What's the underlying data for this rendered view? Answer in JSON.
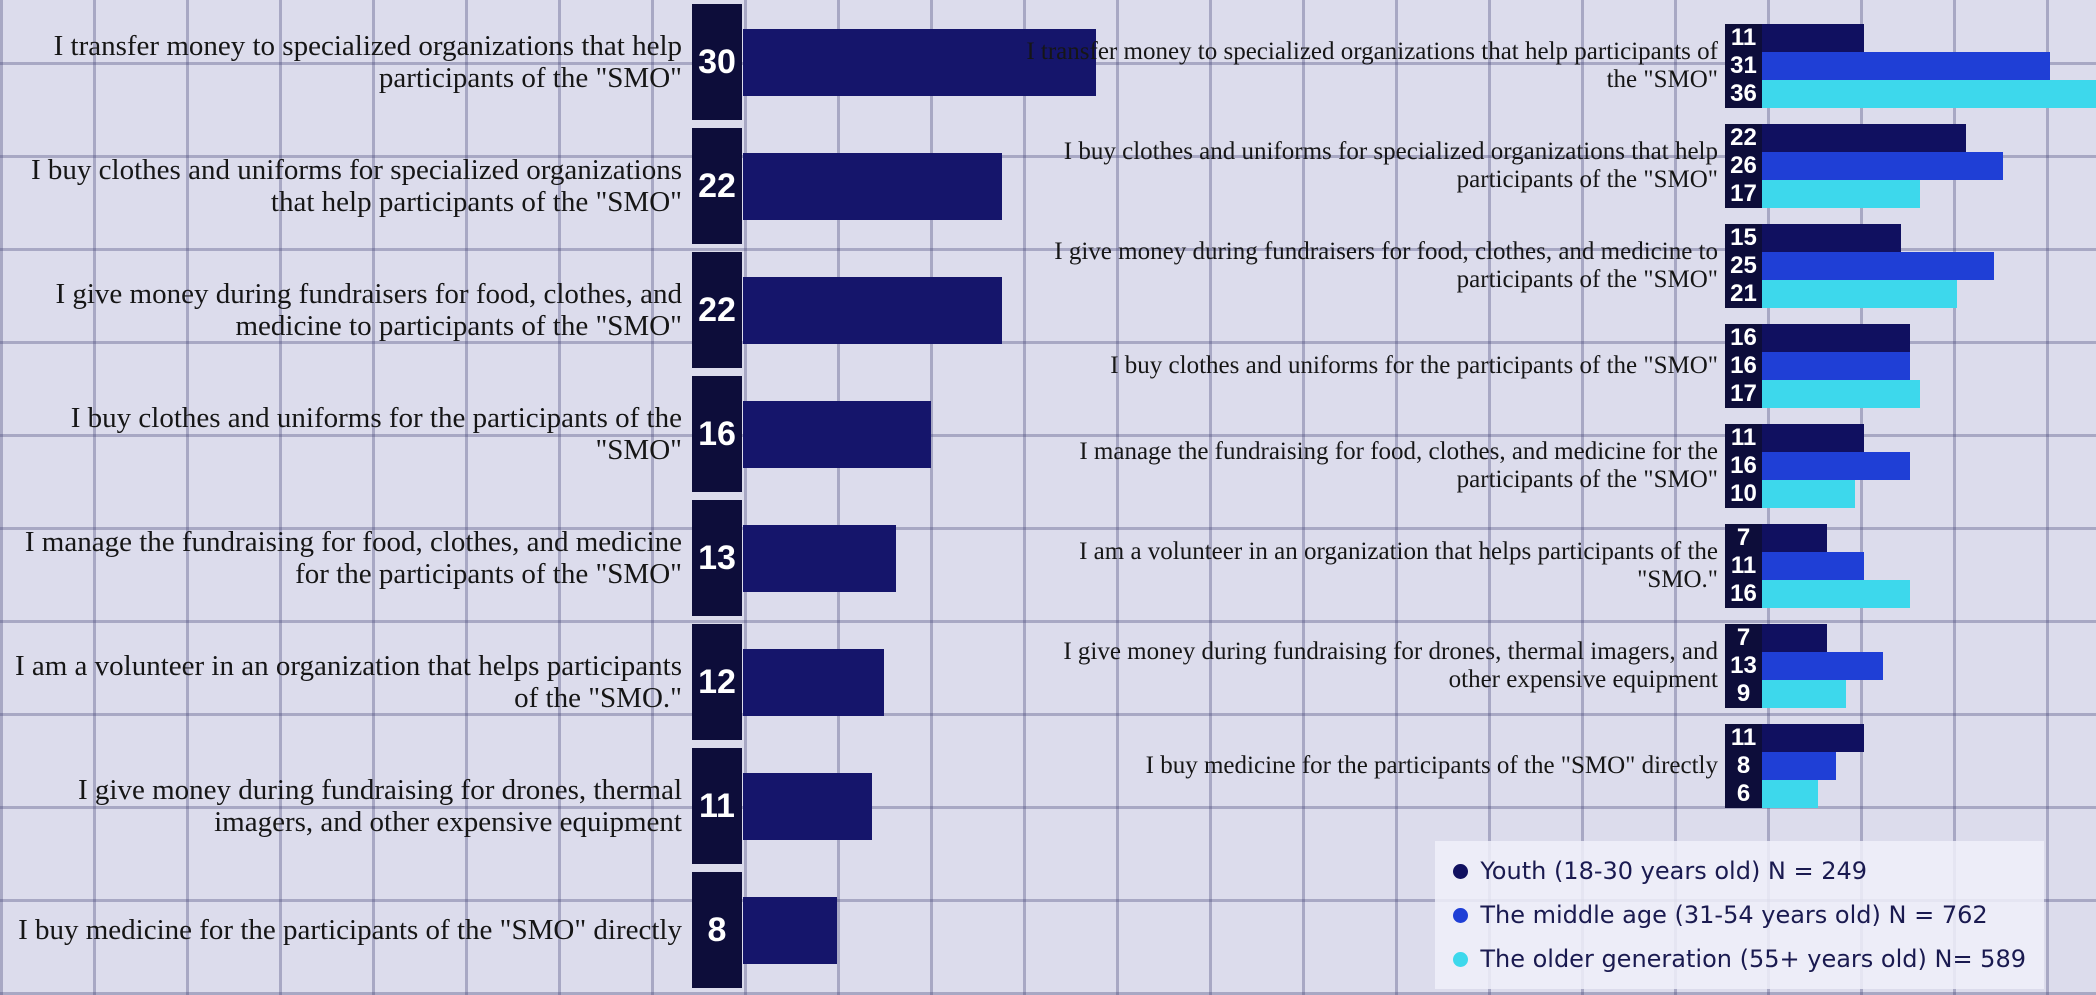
{
  "chart_data": [
    {
      "type": "bar",
      "color": "#15156b",
      "categories": [
        "I transfer money to specialized organizations that help participants of the \"SMO\"",
        "I buy clothes and uniforms for specialized organizations that help participants of the \"SMO\"",
        "I give money during fundraisers for food, clothes, and medicine to participants of  the \"SMO\"",
        "I buy clothes and uniforms for the participants of the \"SMO\"",
        "I manage the fundraising for food, clothes, and medicine for the participants of the \"SMO\"",
        "I am a volunteer in an organization that helps participants of the \"SMO.\"",
        "I give money during fundraising for drones, thermal imagers, and other expensive equipment",
        "I buy medicine for the participants of the \"SMO\" directly"
      ],
      "values": [
        30,
        22,
        22,
        16,
        13,
        12,
        11,
        8
      ]
    },
    {
      "type": "bar",
      "legend_position": "lower right",
      "categories": [
        "I transfer money to specialized organizations that help participants of the \"SMO\"",
        "I buy clothes and uniforms for specialized organizations that help participants of the \"SMO\"",
        "I give money during fundraisers for food, clothes, and medicine to participants of  the \"SMO\"",
        "I buy clothes and uniforms for the participants of the \"SMO\"",
        "I manage the fundraising for food, clothes, and medicine for the participants of the \"SMO\"",
        "I am a volunteer in an organization that helps participants of the \"SMO.\"",
        "I give money during fundraising for drones, thermal imagers, and other expensive equipment",
        "I buy medicine for the participants of the \"SMO\" directly"
      ],
      "series": [
        {
          "name": "Youth (18-30 years old) N = 249",
          "color": "#101060",
          "values": [
            11,
            22,
            15,
            16,
            11,
            7,
            7,
            11
          ]
        },
        {
          "name": "The middle age (31-54 years old) N = 762",
          "color": "#1f3fd6",
          "values": [
            31,
            26,
            25,
            16,
            16,
            11,
            13,
            8
          ]
        },
        {
          "name": "The older generation (55+ years old) N= 589",
          "color": "#3dd8ec",
          "values": [
            36,
            17,
            21,
            17,
            10,
            16,
            9,
            6
          ]
        }
      ]
    }
  ]
}
